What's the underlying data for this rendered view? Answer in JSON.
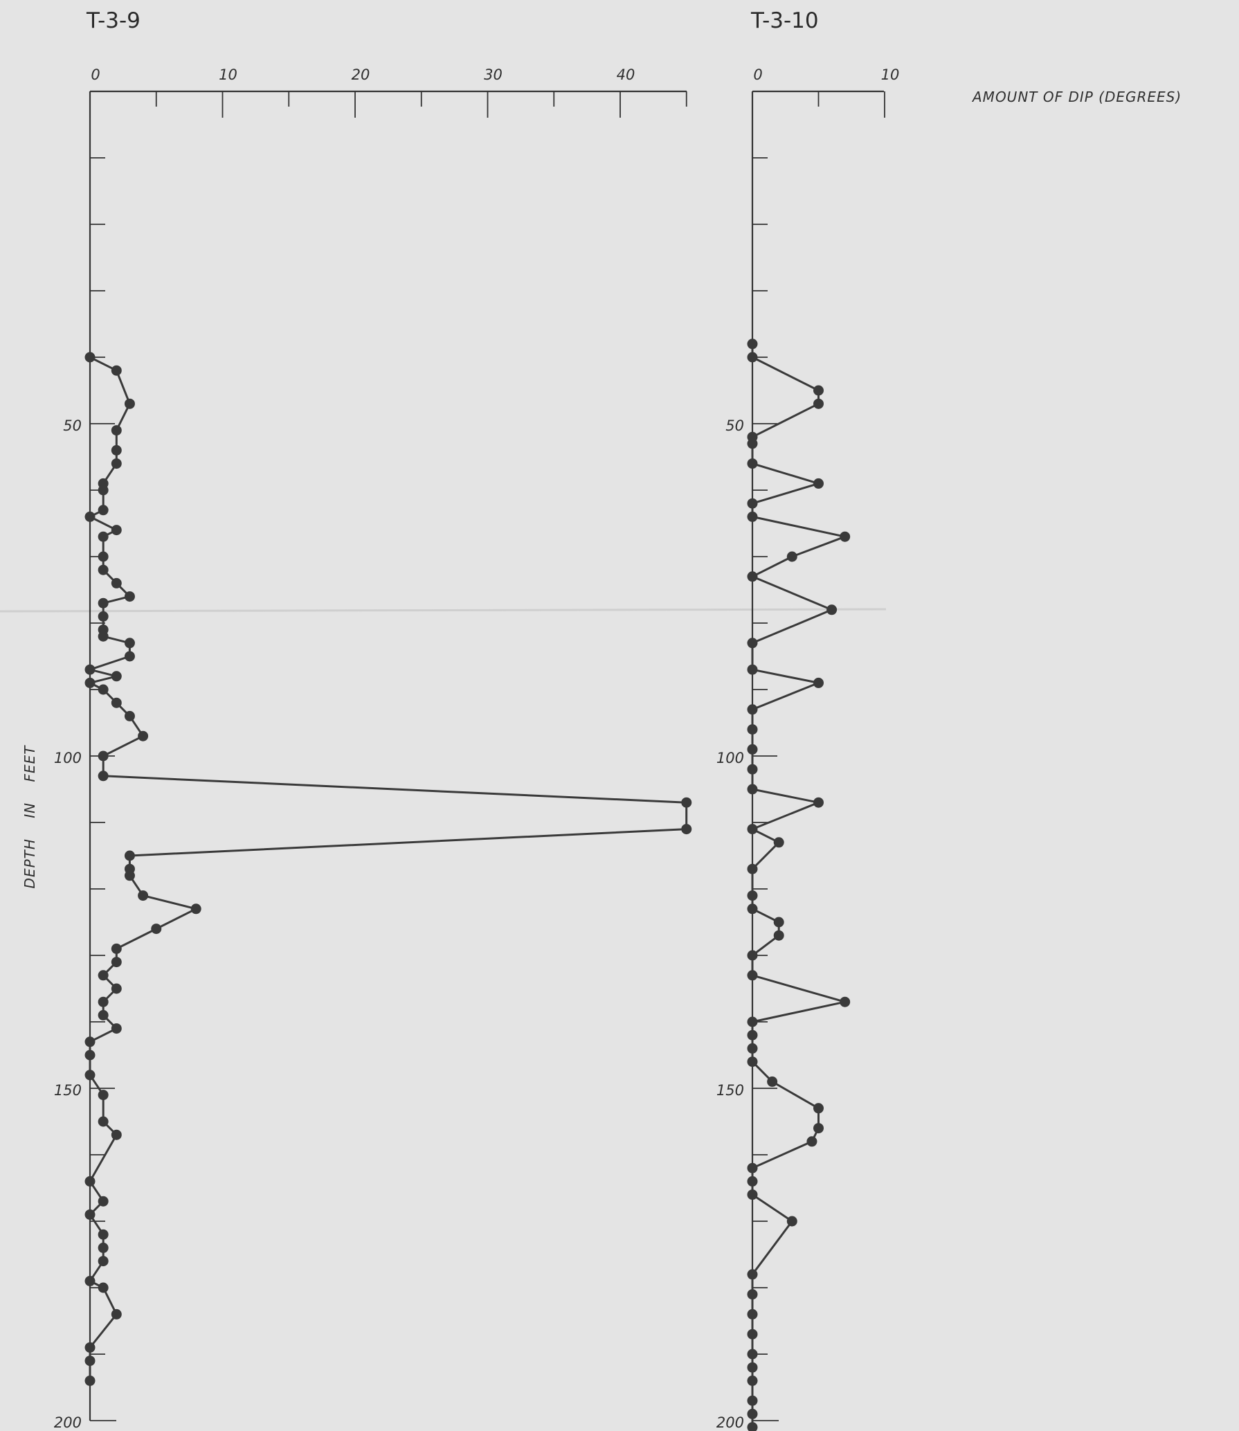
{
  "chart_data": [
    {
      "type": "line",
      "title": "T-3-9",
      "xlabel": "AMOUNT OF DIP (DEGREES)",
      "ylabel": "DEPTH IN FEET",
      "xlim": [
        0,
        45
      ],
      "ylim": [
        0,
        200
      ],
      "x_ticks": [
        0,
        10,
        20,
        30,
        40
      ],
      "y_ticks": [
        50,
        100,
        150,
        200
      ],
      "series": [
        {
          "x": [
            0,
            2,
            3,
            2,
            2,
            2,
            1,
            1,
            1,
            0,
            2,
            1,
            1,
            1,
            2,
            3,
            1,
            1,
            1,
            1,
            3,
            3,
            0,
            2,
            0,
            1,
            2,
            3,
            4,
            1,
            1,
            45,
            45,
            3,
            3,
            3,
            4,
            8,
            5,
            2,
            2,
            1,
            2,
            1,
            1,
            2,
            0,
            0,
            0,
            1,
            1,
            2,
            0,
            1,
            0,
            1,
            1,
            1,
            0,
            1,
            2,
            0,
            0,
            0
          ],
          "y": [
            40,
            42,
            47,
            51,
            54,
            56,
            59,
            60,
            63,
            64,
            66,
            67,
            70,
            72,
            74,
            76,
            77,
            79,
            81,
            82,
            83,
            85,
            87,
            88,
            89,
            90,
            92,
            94,
            97,
            100,
            103,
            107,
            111,
            115,
            117,
            118,
            121,
            123,
            126,
            129,
            131,
            133,
            135,
            137,
            139,
            141,
            143,
            145,
            148,
            151,
            155,
            157,
            164,
            167,
            169,
            172,
            174,
            176,
            179,
            180,
            184,
            189,
            191,
            194
          ]
        }
      ]
    },
    {
      "type": "line",
      "title": "T-3-10",
      "xlabel": "AMOUNT OF DIP (DEGREES)",
      "ylabel": "DEPTH IN FEET",
      "xlim": [
        0,
        10
      ],
      "ylim": [
        0,
        200
      ],
      "x_ticks": [
        0,
        10
      ],
      "y_ticks": [
        50,
        100,
        150,
        200
      ],
      "series": [
        {
          "x": [
            0,
            0,
            5,
            5,
            0,
            0,
            0,
            5,
            0,
            0,
            7,
            3,
            0,
            6,
            0,
            0,
            5,
            0,
            0,
            0,
            0,
            0,
            5,
            0,
            2,
            0,
            0,
            0,
            2,
            2,
            0,
            0,
            7,
            0,
            0,
            0,
            0,
            1.5,
            5,
            5,
            4.5,
            0,
            0,
            0,
            3,
            0,
            0,
            0,
            0,
            0,
            0,
            0,
            0,
            0,
            0
          ],
          "y": [
            38,
            40,
            45,
            47,
            52,
            53,
            56,
            59,
            62,
            64,
            67,
            70,
            73,
            78,
            83,
            87,
            89,
            93,
            96,
            99,
            102,
            105,
            107,
            111,
            113,
            117,
            121,
            123,
            125,
            127,
            130,
            133,
            137,
            140,
            142,
            144,
            146,
            149,
            153,
            156,
            158,
            162,
            164,
            166,
            170,
            178,
            181,
            184,
            187,
            190,
            192,
            194,
            197,
            199,
            201
          ]
        }
      ]
    }
  ]
}
